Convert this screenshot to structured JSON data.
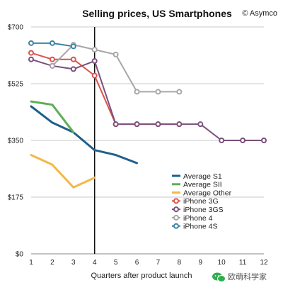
{
  "chart_data": {
    "type": "line",
    "title": "Selling prices, US Smartphones",
    "credit": "© Asymco",
    "xlabel": "Quarters after product launch",
    "ylabel": "",
    "xlim": [
      1,
      12
    ],
    "ylim": [
      0,
      700
    ],
    "x_ticks": [
      1,
      2,
      3,
      4,
      5,
      6,
      7,
      8,
      9,
      10,
      11,
      12
    ],
    "y_ticks": [
      0,
      175,
      350,
      525,
      700
    ],
    "y_tick_labels": [
      "$0",
      "$175",
      "$350",
      "$525",
      "$700"
    ],
    "grid": "horizontal",
    "reference_line_x": 4,
    "legend_position": "bottom-right",
    "series": [
      {
        "name": "Average S1",
        "color": "#1f5f8b",
        "markers": false,
        "x": [
          1,
          2,
          3,
          4,
          5,
          6
        ],
        "values": [
          455,
          405,
          375,
          320,
          305,
          280
        ]
      },
      {
        "name": "Average SII",
        "color": "#5fae57",
        "markers": false,
        "x": [
          1,
          2,
          3
        ],
        "values": [
          470,
          460,
          375
        ]
      },
      {
        "name": "Average Other",
        "color": "#f2b84b",
        "markers": false,
        "x": [
          1,
          2,
          3,
          4
        ],
        "values": [
          305,
          275,
          205,
          235
        ]
      },
      {
        "name": "iPhone 3G",
        "color": "#d9544d",
        "markers": true,
        "x": [
          1,
          2,
          3,
          4,
          5,
          6,
          7,
          8
        ],
        "values": [
          620,
          600,
          600,
          550,
          400,
          400,
          400,
          400
        ]
      },
      {
        "name": "iPhone 3GS",
        "color": "#7b4f7b",
        "markers": true,
        "x": [
          1,
          2,
          3,
          4,
          5,
          6,
          7,
          8,
          9,
          10,
          11,
          12
        ],
        "values": [
          600,
          580,
          570,
          595,
          400,
          400,
          400,
          400,
          400,
          350,
          350,
          350
        ]
      },
      {
        "name": "iPhone 4",
        "color": "#a7a7a7",
        "markers": true,
        "x": [
          2,
          3,
          4,
          5,
          6,
          7,
          8
        ],
        "values": [
          580,
          645,
          630,
          615,
          500,
          500,
          500
        ]
      },
      {
        "name": "iPhone 4S",
        "color": "#3f83a5",
        "markers": true,
        "x": [
          1,
          2,
          3
        ],
        "values": [
          650,
          650,
          640
        ]
      }
    ]
  },
  "watermark": {
    "text": "欧萌科学家",
    "icon": "wechat-bubble-icon"
  }
}
